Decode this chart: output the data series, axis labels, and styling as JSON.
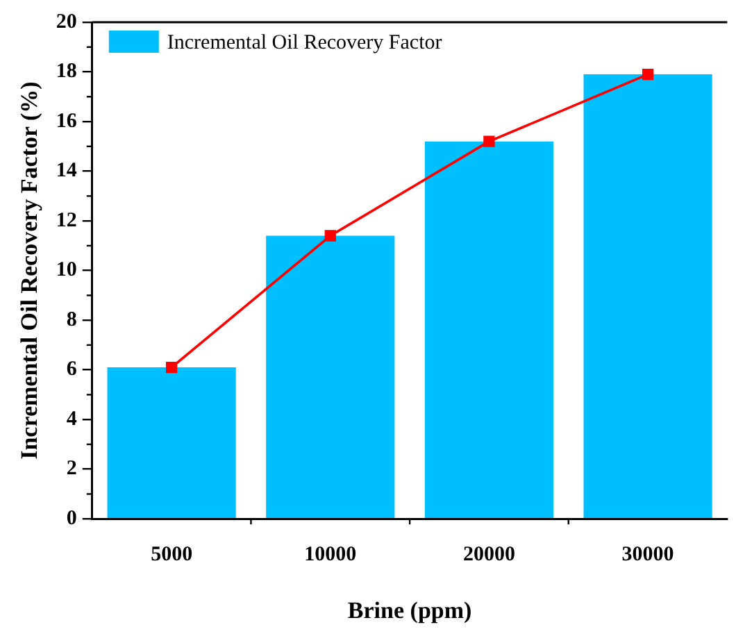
{
  "chart_data": {
    "type": "bar",
    "xlabel": "Brine (ppm)",
    "ylabel": "Incremental Oil Recovery Factor (%)",
    "categories": [
      "5000",
      "10000",
      "20000",
      "30000"
    ],
    "series": [
      {
        "name": "Incremental Oil Recovery Factor",
        "color": "#00bfff",
        "values": [
          6.1,
          11.4,
          15.2,
          17.9
        ]
      },
      {
        "type": "line",
        "color": "#ff0000",
        "values": [
          6.1,
          11.4,
          15.2,
          17.9
        ]
      }
    ],
    "ylim": [
      0,
      20
    ],
    "yticks": [
      0,
      2,
      4,
      6,
      8,
      10,
      12,
      14,
      16,
      18,
      20
    ],
    "grid": false,
    "legend": "top left",
    "marker": "square",
    "line_style": "solid"
  }
}
